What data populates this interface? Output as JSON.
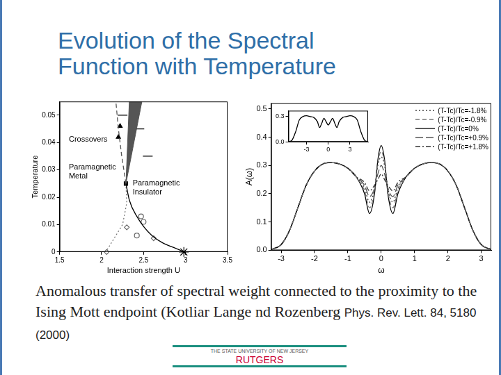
{
  "title": [
    "Evolution of the Spectral",
    "Function with Temperature"
  ],
  "caption": {
    "text": "Anomalous transfer of spectral weight connected to the proximity to the Ising Mott endpoint (Kotliar Lange nd Rozenberg",
    "citation": "Phys. Rev. Lett. 84, 5180 (2000)"
  },
  "footer": {
    "university": "THE STATE UNIVERSITY OF NEW JERSEY",
    "name": "RUTGERS"
  },
  "chart_data": [
    {
      "type": "line",
      "x_label": "Interaction strength U",
      "y_label": "Temperature",
      "xlim": [
        1.5,
        3.5
      ],
      "xticks": [
        1.5,
        2,
        2.5,
        3,
        3.5
      ],
      "ylim": [
        0,
        0.055
      ],
      "yticks": [
        0,
        0.01,
        0.02,
        0.03,
        0.04,
        0.05
      ],
      "grid": false,
      "annotations": [
        {
          "text": [
            "Crossovers"
          ],
          "x": 1.61,
          "y": 0.041
        },
        {
          "text": [
            "Paramagnetic",
            "Metal"
          ],
          "x": 1.61,
          "y": 0.031
        },
        {
          "text": [
            "Paramagnetic",
            "Insulator"
          ],
          "x": 2.37,
          "y": 0.025
        }
      ],
      "series": [
        {
          "type": "line",
          "color": "#000000",
          "line_style": "solid",
          "x": [
            2.29,
            2.33,
            2.42,
            2.6,
            2.98
          ],
          "values": [
            0.025,
            0.019,
            0.013,
            0.006,
            0
          ]
        },
        {
          "type": "line",
          "color": "#777777",
          "line_style": "dotted",
          "x": [
            2.29,
            2.3,
            2.25,
            2.15,
            2.05
          ],
          "values": [
            0.025,
            0.018,
            0.01,
            0.005,
            0
          ]
        },
        {
          "type": "line",
          "color": "#555555",
          "line_style": "dashed",
          "x": [
            2.29,
            2.24,
            2.2,
            2.17
          ],
          "values": [
            0.025,
            0.035,
            0.045,
            0.055
          ]
        },
        {
          "type": "area",
          "color": "#555555",
          "x": [
            2.29,
            2.33,
            2.48,
            2.29
          ],
          "values": [
            0.025,
            0.055,
            0.055,
            0.025
          ]
        },
        {
          "type": "scatter",
          "marker": "square",
          "color": "#000000",
          "x": [
            2.29
          ],
          "values": [
            0.025
          ]
        },
        {
          "type": "scatter",
          "marker": "star",
          "color": "#000000",
          "x": [
            2.98
          ],
          "values": [
            0
          ]
        },
        {
          "type": "scatter",
          "marker": "circle",
          "color": "#666666",
          "x": [
            2.47,
            2.5,
            2.42
          ],
          "values": [
            0.013,
            0.011,
            0.006
          ]
        },
        {
          "type": "scatter",
          "marker": "diamond",
          "color": "#666666",
          "x": [
            2.3,
            2.62,
            2.06
          ],
          "values": [
            0.009,
            0.005,
            0
          ]
        },
        {
          "type": "scatter",
          "marker": "triangle",
          "color": "#000000",
          "x": [
            2.22,
            2.2
          ],
          "values": [
            0.046,
            0.042
          ]
        },
        {
          "type": "scatter",
          "marker": "dash",
          "color": "#000000",
          "x": [
            2.25,
            2.45,
            2.55
          ],
          "values": [
            0.05,
            0.045,
            0.035
          ]
        }
      ]
    },
    {
      "type": "line",
      "x_label": "ω",
      "y_label": "A(ω)",
      "xlim": [
        -3.3,
        3.3
      ],
      "xticks": [
        -3,
        -2,
        -1,
        0,
        1,
        2,
        3
      ],
      "ylim": [
        0,
        0.52
      ],
      "yticks": [
        {
          "value": 0,
          "label": "0.0"
        },
        0.1,
        0.2,
        0.3,
        0.4,
        0.5
      ],
      "grid": false,
      "legend": "upper right",
      "x": [
        -3.3,
        -3,
        -2.75,
        -2.5,
        -2.25,
        -2,
        -1.75,
        -1.5,
        -1.25,
        -1,
        -0.75,
        -0.5,
        -0.35,
        -0.2,
        -0.1,
        0,
        0.1,
        0.2,
        0.35,
        0.5,
        0.75,
        1,
        1.25,
        1.5,
        1.75,
        2,
        2.25,
        2.5,
        2.75,
        3,
        3.3
      ],
      "series": [
        {
          "name": "(T-Tc)/Tc=-1.8%",
          "color": "#444444",
          "line_style": "dotted",
          "values": [
            0.003,
            0.02,
            0.07,
            0.15,
            0.23,
            0.28,
            0.305,
            0.31,
            0.305,
            0.29,
            0.26,
            0.22,
            0.17,
            0.22,
            0.3,
            0.33,
            0.3,
            0.22,
            0.17,
            0.22,
            0.26,
            0.29,
            0.305,
            0.31,
            0.305,
            0.28,
            0.23,
            0.15,
            0.07,
            0.02,
            0.003
          ]
        },
        {
          "name": "(T-Tc)/Tc=-0.9%",
          "color": "#777777",
          "line_style": "dashed",
          "values": [
            0.003,
            0.02,
            0.07,
            0.15,
            0.23,
            0.28,
            0.305,
            0.31,
            0.305,
            0.29,
            0.26,
            0.21,
            0.15,
            0.21,
            0.31,
            0.35,
            0.31,
            0.21,
            0.15,
            0.21,
            0.26,
            0.29,
            0.305,
            0.31,
            0.305,
            0.28,
            0.23,
            0.15,
            0.07,
            0.02,
            0.003
          ]
        },
        {
          "name": "(T-Tc)/Tc=0%",
          "color": "#000000",
          "line_style": "solid",
          "values": [
            0.003,
            0.02,
            0.07,
            0.15,
            0.23,
            0.28,
            0.305,
            0.31,
            0.305,
            0.29,
            0.26,
            0.2,
            0.13,
            0.2,
            0.32,
            0.37,
            0.32,
            0.2,
            0.13,
            0.2,
            0.26,
            0.29,
            0.305,
            0.31,
            0.305,
            0.28,
            0.23,
            0.15,
            0.07,
            0.02,
            0.003
          ]
        },
        {
          "name": "(T-Tc)/Tc=+0.9%",
          "color": "#555555",
          "line_style": "longdash",
          "values": [
            0.003,
            0.02,
            0.07,
            0.15,
            0.23,
            0.28,
            0.305,
            0.31,
            0.305,
            0.29,
            0.26,
            0.23,
            0.19,
            0.22,
            0.27,
            0.3,
            0.27,
            0.22,
            0.19,
            0.23,
            0.26,
            0.29,
            0.305,
            0.31,
            0.305,
            0.28,
            0.23,
            0.15,
            0.07,
            0.02,
            0.003
          ]
        },
        {
          "name": "(T-Tc)/Tc=+1.8%",
          "color": "#333333",
          "line_style": "dashdot",
          "values": [
            0.003,
            0.02,
            0.07,
            0.15,
            0.23,
            0.28,
            0.305,
            0.31,
            0.305,
            0.29,
            0.26,
            0.24,
            0.21,
            0.23,
            0.25,
            0.27,
            0.25,
            0.23,
            0.21,
            0.24,
            0.26,
            0.29,
            0.305,
            0.31,
            0.305,
            0.28,
            0.23,
            0.15,
            0.07,
            0.02,
            0.003
          ]
        }
      ]
    },
    {
      "type": "line",
      "xlim": [
        -5.5,
        5.5
      ],
      "xticks": [
        -3,
        0,
        3
      ],
      "ylim": [
        0,
        0.37
      ],
      "yticks": [
        {
          "value": 0,
          "label": "0.0"
        },
        0.3
      ],
      "grid": false,
      "x": [
        -5.5,
        -5,
        -4.5,
        -4,
        -3.5,
        -3,
        -2.5,
        -2,
        -1.5,
        -1.2,
        -0.9,
        -0.6,
        -0.3,
        0,
        0.3,
        0.6,
        0.9,
        1.2,
        1.5,
        2,
        2.5,
        3,
        3.5,
        4,
        4.5,
        5,
        5.5
      ],
      "series": [
        {
          "color": "#000000",
          "line_style": "solid",
          "values": [
            0,
            0.02,
            0.12,
            0.26,
            0.3,
            0.31,
            0.3,
            0.29,
            0.24,
            0.17,
            0.22,
            0.28,
            0.24,
            0.2,
            0.24,
            0.28,
            0.22,
            0.17,
            0.24,
            0.29,
            0.3,
            0.31,
            0.3,
            0.26,
            0.12,
            0.02,
            0
          ]
        }
      ]
    }
  ]
}
